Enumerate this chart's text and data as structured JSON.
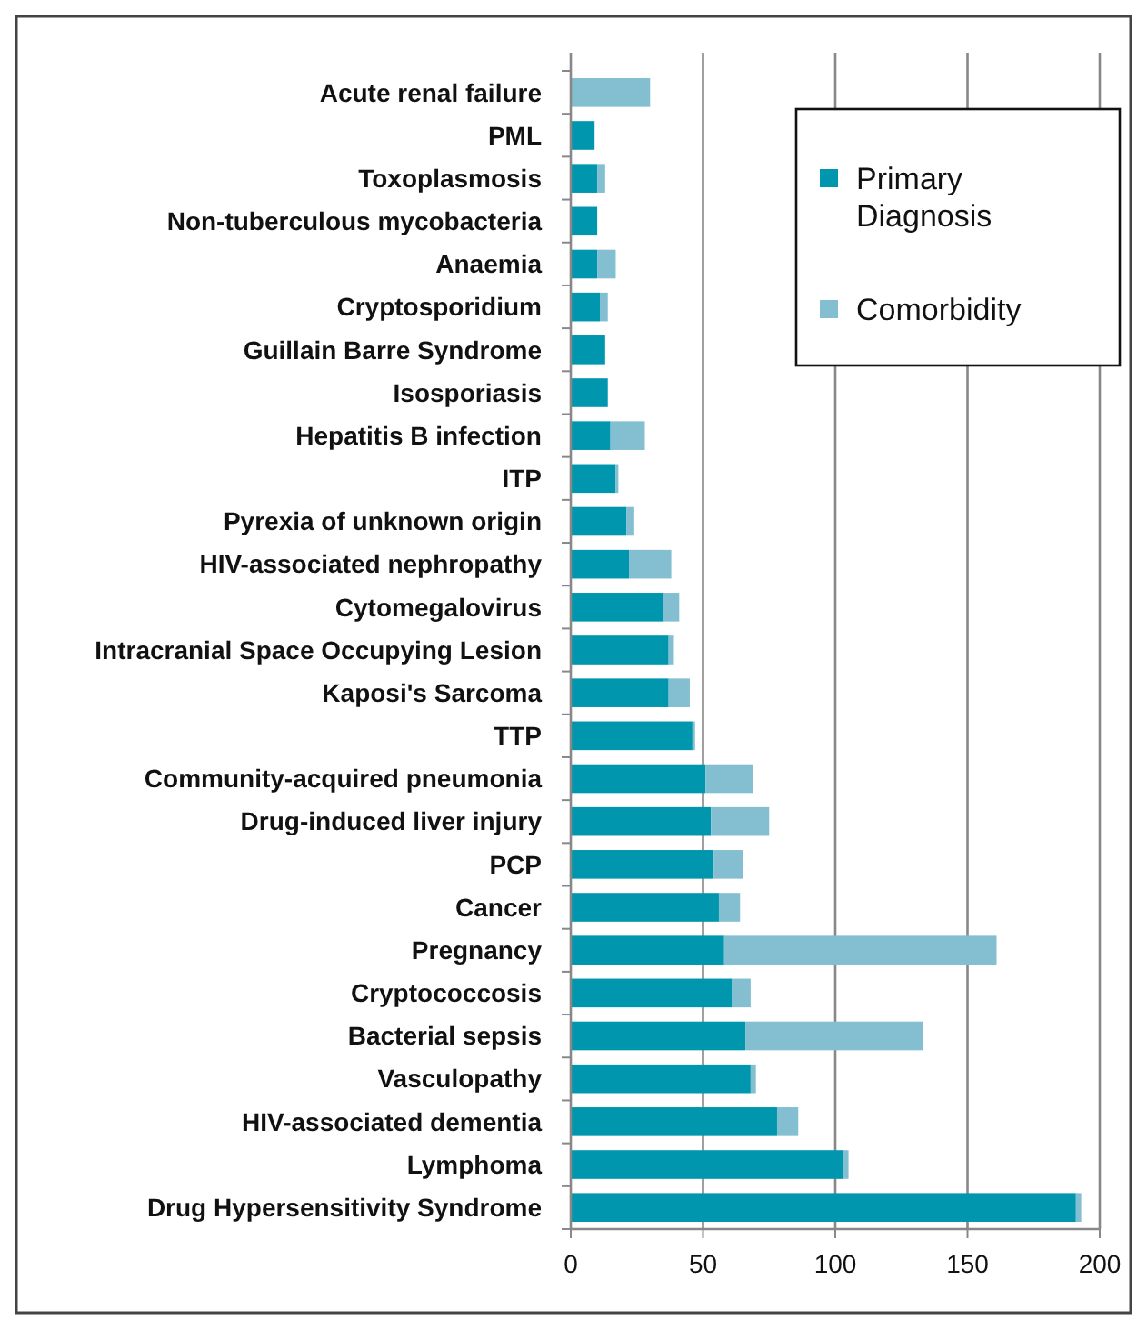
{
  "chart_data": {
    "type": "bar",
    "orientation": "horizontal",
    "stacked": true,
    "categories": [
      "Acute renal failure",
      "PML",
      "Toxoplasmosis",
      "Non-tuberculous mycobacteria",
      "Anaemia",
      "Cryptosporidium",
      "Guillain Barre Syndrome",
      "Isosporiasis",
      "Hepatitis B infection",
      "ITP",
      "Pyrexia of unknown origin",
      "HIV-associated nephropathy",
      "Cytomegalovirus",
      "Intracranial Space Occupying Lesion",
      "Kaposi's Sarcoma",
      "TTP",
      "Community-acquired pneumonia",
      "Drug-induced liver injury",
      "PCP",
      "Cancer",
      "Pregnancy",
      "Cryptococcosis",
      "Bacterial sepsis",
      "Vasculopathy",
      "HIV-associated dementia",
      "Lymphoma",
      "Drug Hypersensitivity Syndrome"
    ],
    "series": [
      {
        "name": "Primary Diagnosis",
        "color": "#0097ae",
        "values": [
          0,
          9,
          10,
          10,
          10,
          11,
          13,
          14,
          15,
          17,
          21,
          22,
          35,
          37,
          37,
          46,
          51,
          53,
          54,
          56,
          58,
          61,
          66,
          68,
          78,
          103,
          191
        ]
      },
      {
        "name": "Comorbidity",
        "color": "#83bfd1",
        "values": [
          30,
          0,
          3,
          0,
          7,
          3,
          0,
          0,
          13,
          1,
          3,
          16,
          6,
          2,
          8,
          1,
          18,
          22,
          11,
          8,
          103,
          7,
          67,
          2,
          8,
          2,
          2
        ]
      }
    ],
    "xlim": [
      0,
      200
    ],
    "xticks": [
      0,
      50,
      100,
      150,
      200
    ],
    "grid": "x",
    "legend": "top right"
  }
}
